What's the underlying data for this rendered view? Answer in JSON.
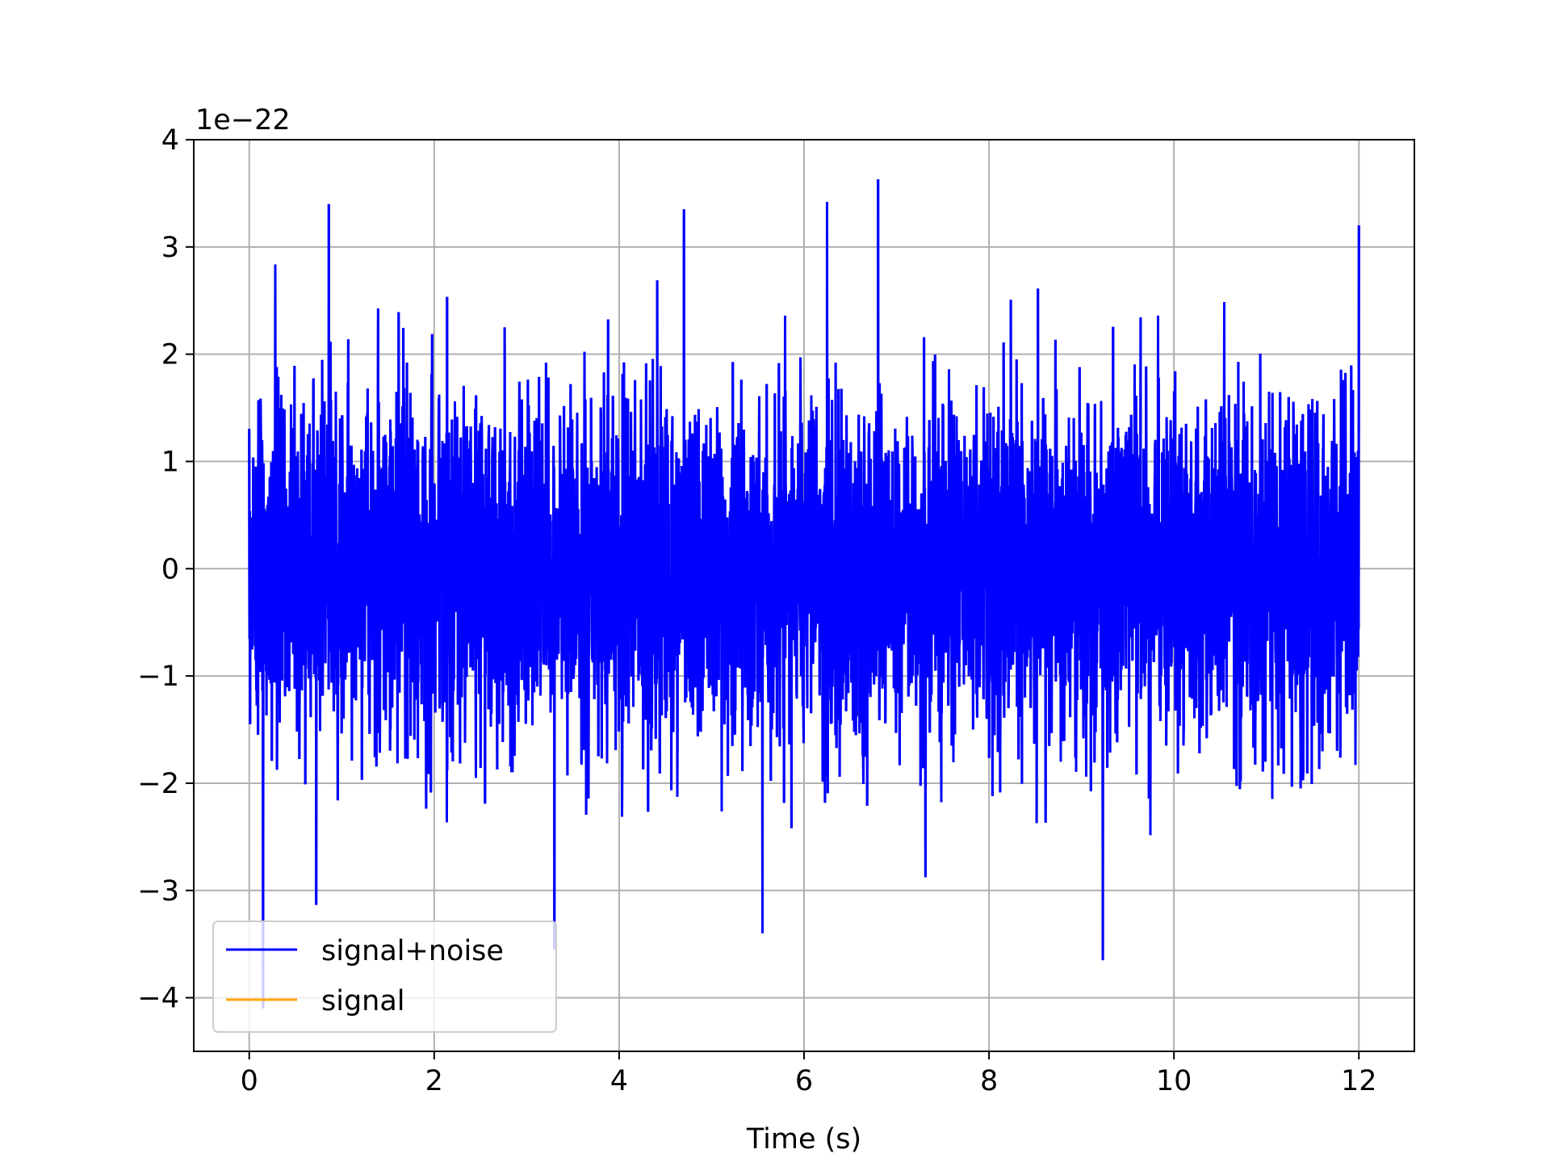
{
  "chart_data": {
    "type": "line",
    "title": "",
    "xlabel": "Time (s)",
    "ylabel": "",
    "y_offset_text": "1e−22",
    "y_scale_exponent": -22,
    "xlim": [
      -0.6,
      12.6
    ],
    "ylim": [
      -4.5,
      4.0
    ],
    "xticks": [
      0,
      2,
      4,
      6,
      8,
      10,
      12
    ],
    "xtick_labels": [
      "0",
      "2",
      "4",
      "6",
      "8",
      "10",
      "12"
    ],
    "yticks": [
      4,
      3,
      2,
      1,
      0,
      -1,
      -2,
      -3,
      -4
    ],
    "ytick_labels": [
      "4",
      "3",
      "2",
      "1",
      "0",
      "−1",
      "−2",
      "−3",
      "−4"
    ],
    "grid": true,
    "legend_position": "lower-left",
    "series": [
      {
        "name": "signal+noise",
        "color": "#0000ff",
        "x_range": [
          0,
          12
        ],
        "approx_std": 0.8,
        "approx_max": 3.63,
        "approx_min": -4.1,
        "notable_peaks": [
          {
            "x": 0.86,
            "y": 3.4
          },
          {
            "x": 6.8,
            "y": 3.63
          },
          {
            "x": 6.25,
            "y": 3.42
          },
          {
            "x": 4.7,
            "y": 3.35
          },
          {
            "x": 12.0,
            "y": 3.2
          },
          {
            "x": 9.23,
            "y": -3.65
          },
          {
            "x": 0.15,
            "y": -4.1
          },
          {
            "x": 5.55,
            "y": -3.4
          },
          {
            "x": 3.3,
            "y": -3.55
          }
        ]
      },
      {
        "name": "signal",
        "color": "#ffa500",
        "x_range": [
          0,
          12
        ],
        "values": "flat near 0 (hidden beneath signal+noise)"
      }
    ]
  }
}
